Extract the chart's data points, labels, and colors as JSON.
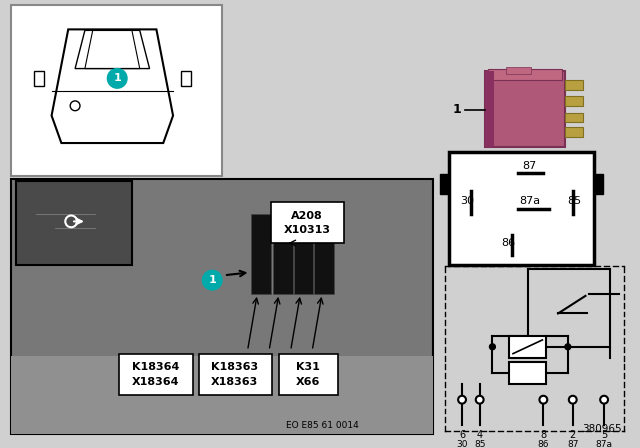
{
  "bg_color": "#d0d0d0",
  "white": "#ffffff",
  "black": "#000000",
  "teal": "#00aaaa",
  "pink_relay": "#b05878",
  "diagram_num": "380965",
  "eo_label": "EO E85 61 0014",
  "labels_main": [
    "A208",
    "X10313"
  ],
  "labels_k1": [
    "K18364",
    "X18364"
  ],
  "labels_k2": [
    "K18363",
    "X18363"
  ],
  "labels_k3": [
    "K31",
    "X66"
  ],
  "pin_numbers_top": [
    "6",
    "4",
    "8",
    "2",
    "5"
  ],
  "pin_numbers_bot": [
    "30",
    "85",
    "86",
    "87",
    "87a"
  ],
  "relay_pins": [
    "87",
    "87a",
    "30",
    "85",
    "86"
  ]
}
